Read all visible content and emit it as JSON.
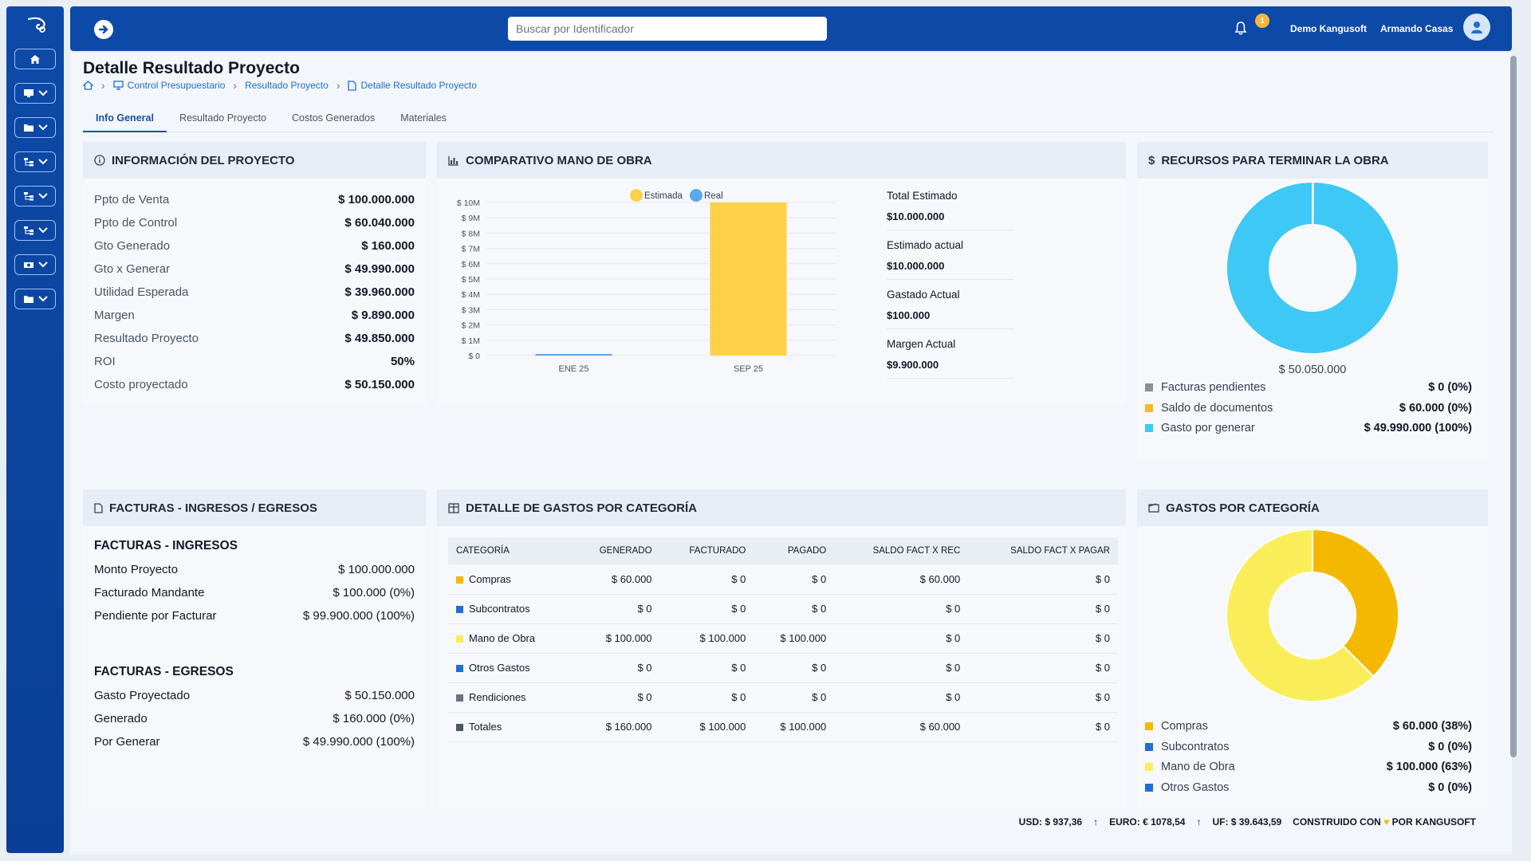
{
  "topbar": {
    "search_placeholder": "Buscar por Identificador",
    "notification_count": "1",
    "company": "Demo Kangusoft",
    "user": "Armando Casas"
  },
  "page": {
    "title": "Detalle Resultado Proyecto",
    "breadcrumb": [
      "Control Presupuestario",
      "Resultado Proyecto",
      "Detalle Resultado Proyecto"
    ]
  },
  "tabs": [
    "Info General",
    "Resultado Proyecto",
    "Costos Generados",
    "Materiales"
  ],
  "info": {
    "title": "INFORMACIÓN DEL PROYECTO",
    "rows": [
      {
        "k": "Ppto de Venta",
        "v": "$ 100.000.000"
      },
      {
        "k": "Ppto de Control",
        "v": "$ 60.040.000"
      },
      {
        "k": "Gto Generado",
        "v": "$ 160.000"
      },
      {
        "k": "Gto x Generar",
        "v": "$ 49.990.000"
      },
      {
        "k": "Utilidad Esperada",
        "v": "$ 39.960.000"
      },
      {
        "k": "Margen",
        "v": "$ 9.890.000"
      },
      {
        "k": "Resultado Proyecto",
        "v": "$ 49.850.000"
      },
      {
        "k": "ROI",
        "v": "50%"
      },
      {
        "k": "Costo proyectado",
        "v": "$ 50.150.000"
      }
    ]
  },
  "comparativo": {
    "title": "COMPARATIVO MANO DE OBRA",
    "stats": [
      {
        "k": "Total Estimado",
        "v": "$10.000.000"
      },
      {
        "k": "Estimado actual",
        "v": "$10.000.000"
      },
      {
        "k": "Gastado Actual",
        "v": "$100.000"
      },
      {
        "k": "Margen Actual",
        "v": "$9.900.000"
      }
    ]
  },
  "recursos": {
    "title": "RECURSOS PARA TERMINAR LA OBRA",
    "center_value": "$ 50.050.000",
    "legend": [
      {
        "name": "Facturas pendientes",
        "value": "$ 0 (0%)",
        "color": "#8a8f98"
      },
      {
        "name": "Saldo de documentos",
        "value": "$ 60.000 (0%)",
        "color": "#f5b82e"
      },
      {
        "name": "Gasto por generar",
        "value": "$ 49.990.000 (100%)",
        "color": "#3ec8f5"
      }
    ]
  },
  "facturas": {
    "title": "FACTURAS - INGRESOS / EGRESOS",
    "ingresos_title": "FACTURAS - INGRESOS",
    "ingresos": [
      {
        "k": "Monto Proyecto",
        "v": "$ 100.000.000"
      },
      {
        "k": "Facturado Mandante",
        "v": "$ 100.000 (0%)"
      },
      {
        "k": "Pendiente por Facturar",
        "v": "$ 99.900.000 (100%)"
      }
    ],
    "egresos_title": "FACTURAS - EGRESOS",
    "egresos": [
      {
        "k": "Gasto Proyectado",
        "v": "$ 50.150.000"
      },
      {
        "k": "Generado",
        "v": "$ 160.000 (0%)"
      },
      {
        "k": "Por Generar",
        "v": "$ 49.990.000 (100%)"
      }
    ]
  },
  "detalle": {
    "title": "DETALLE DE GASTOS POR CATEGORÍA",
    "headers": [
      "CATEGORÍA",
      "GENERADO",
      "FACTURADO",
      "PAGADO",
      "SALDO FACT X REC",
      "SALDO FACT X PAGAR"
    ],
    "rows": [
      {
        "name": "Compras",
        "color": "#f5b800",
        "cells": [
          "$ 60.000",
          "$ 0",
          "$ 0",
          "$ 60.000",
          "$ 0"
        ]
      },
      {
        "name": "Subcontratos",
        "color": "#1f6fd1",
        "cells": [
          "$ 0",
          "$ 0",
          "$ 0",
          "$ 0",
          "$ 0"
        ]
      },
      {
        "name": "Mano de Obra",
        "color": "#f9ee5a",
        "cells": [
          "$ 100.000",
          "$ 100.000",
          "$ 100.000",
          "$ 0",
          "$ 0"
        ]
      },
      {
        "name": "Otros Gastos",
        "color": "#1f6fd1",
        "cells": [
          "$ 0",
          "$ 0",
          "$ 0",
          "$ 0",
          "$ 0"
        ]
      },
      {
        "name": "Rendiciones",
        "color": "#6b7280",
        "cells": [
          "$ 0",
          "$ 0",
          "$ 0",
          "$ 0",
          "$ 0"
        ]
      },
      {
        "name": "Totales",
        "color": "#4b5563",
        "cells": [
          "$ 160.000",
          "$ 100.000",
          "$ 100.000",
          "$ 60.000",
          "$ 0"
        ]
      }
    ]
  },
  "gastos_cat": {
    "title": "GASTOS POR CATEGORÍA",
    "legend": [
      {
        "name": "Compras",
        "value": "$ 60.000 (38%)",
        "color": "#f5b800"
      },
      {
        "name": "Subcontratos",
        "value": "$ 0 (0%)",
        "color": "#1f6fd1"
      },
      {
        "name": "Mano de Obra",
        "value": "$ 100.000 (63%)",
        "color": "#f9ee5a"
      },
      {
        "name": "Otros Gastos",
        "value": "$ 0 (0%)",
        "color": "#1f6fd1"
      }
    ]
  },
  "footer": {
    "usd": "USD: $ 937,36",
    "euro": "EURO: € 1078,54",
    "uf": "UF: $ 39.643,59",
    "built_pre": "CONSTRUIDO CON",
    "built_post": "POR KANGUSOFT"
  },
  "chart_data": [
    {
      "type": "bar",
      "categories": [
        "ENE 25",
        "SEP 25"
      ],
      "series": [
        {
          "name": "Estimada",
          "values": [
            0,
            10000000
          ],
          "color": "#ffd04a"
        },
        {
          "name": "Real",
          "values": [
            100000,
            0
          ],
          "color": "#5aa9f0"
        }
      ],
      "ylim": [
        0,
        10000000
      ],
      "yticks": [
        "$ 0",
        "$ 1M",
        "$ 2M",
        "$ 3M",
        "$ 4M",
        "$ 5M",
        "$ 6M",
        "$ 7M",
        "$ 8M",
        "$ 9M",
        "$ 10M"
      ],
      "legend": "top"
    },
    {
      "type": "pie",
      "categories": [
        "Facturas pendientes",
        "Saldo de documentos",
        "Gasto por generar"
      ],
      "values": [
        0,
        60000,
        49990000
      ],
      "colors": [
        "#8a8f98",
        "#f5b82e",
        "#3ec8f5"
      ]
    },
    {
      "type": "pie",
      "categories": [
        "Compras",
        "Subcontratos",
        "Mano de Obra",
        "Otros Gastos"
      ],
      "values": [
        60000,
        0,
        100000,
        0
      ],
      "colors": [
        "#f5b800",
        "#1f6fd1",
        "#f9ee5a",
        "#1f6fd1"
      ]
    }
  ]
}
